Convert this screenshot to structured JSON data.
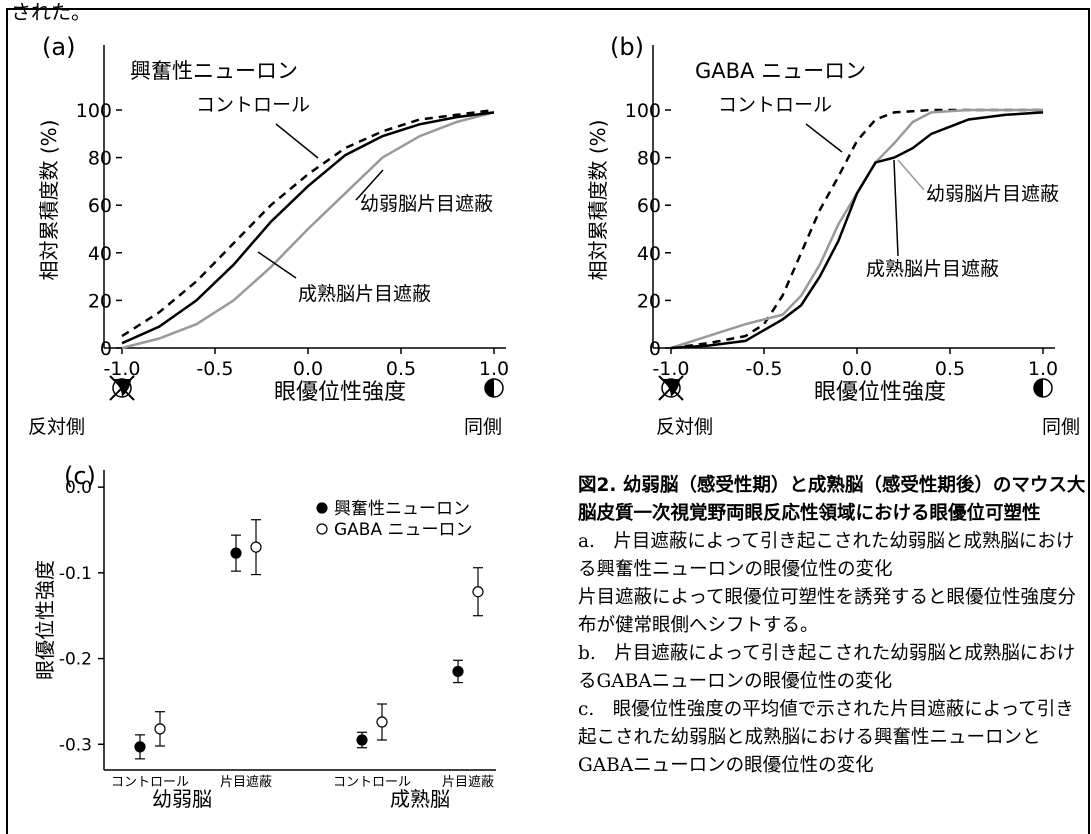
{
  "top_fragment": "された。",
  "panel_a": {
    "label": "(a)",
    "title": "興奮性ニューロン",
    "ylabel": "相対累積度数 (%)",
    "xlabel": "眼優位性強度",
    "yticks": [
      "0",
      "20",
      "40",
      "60",
      "80",
      "100"
    ],
    "xticks": [
      "-1.0",
      "-0.5",
      "0.0",
      "0.5",
      "1.0"
    ],
    "left_side": "反対側",
    "right_side": "同側",
    "label_control": "コントロール",
    "label_juvenile": "幼弱脳片目遮蔽",
    "label_adult": "成熟脳片目遮蔽"
  },
  "panel_b": {
    "label": "(b)",
    "title": "GABA ニューロン",
    "ylabel": "相対累積度数 (%)",
    "xlabel": "眼優位性強度",
    "yticks": [
      "0",
      "20",
      "40",
      "60",
      "80",
      "100"
    ],
    "xticks": [
      "-1.0",
      "-0.5",
      "0.0",
      "0.5",
      "1.0"
    ],
    "left_side": "反対側",
    "right_side": "同側",
    "label_control": "コントロール",
    "label_juvenile": "幼弱脳片目遮蔽",
    "label_adult": "成熟脳片目遮蔽"
  },
  "panel_c": {
    "label": "(c)",
    "ylabel": "眼優位性強度",
    "yticks": [
      "0.0",
      "-0.1",
      "-0.2",
      "-0.3"
    ],
    "legend_exc": "興奮性ニューロン",
    "legend_gaba": "GABA ニューロン",
    "cat_control": "コントロール",
    "cat_md": "片目遮蔽",
    "group_juvenile": "幼弱脳",
    "group_adult": "成熟脳"
  },
  "caption": {
    "title": "図2. 幼弱脳（感受性期）と成熟脳（感受性期後）のマウス大脳皮質一次視覚野両眼反応性領域における眼優位可塑性",
    "p1": "a.　片目遮蔽によって引き起こされた幼弱脳と成熟脳における興奮性ニューロンの眼優位性の変化",
    "p2": "片目遮蔽によって眼優位可塑性を誘発すると眼優位性強度分布が健常眼側へシフトする。",
    "p3": "b.　片目遮蔽によって引き起こされた幼弱脳と成熟脳におけるGABAニューロンの眼優位性の変化",
    "p4": "c.　眼優位性強度の平均値で示された片目遮蔽によって引き起こされた幼弱脳と成熟脳における興奮性ニューロンとGABAニューロンの眼優位性の変化"
  },
  "chart_data": [
    {
      "type": "line",
      "xlim": [
        -1.0,
        1.0
      ],
      "ylim": [
        0,
        100
      ],
      "series": [
        {
          "name": "コントロール",
          "style": "dashed",
          "color": "#000000",
          "x": [
            -1.0,
            -0.8,
            -0.6,
            -0.4,
            -0.2,
            0.0,
            0.2,
            0.4,
            0.6,
            0.8,
            1.0
          ],
          "y": [
            5,
            15,
            28,
            44,
            60,
            73,
            84,
            91,
            96,
            98,
            100
          ]
        },
        {
          "name": "幼弱脳片目遮蔽",
          "style": "solid",
          "color": "#999999",
          "x": [
            -1.0,
            -0.8,
            -0.6,
            -0.4,
            -0.2,
            0.0,
            0.2,
            0.4,
            0.6,
            0.8,
            1.0
          ],
          "y": [
            0,
            4,
            10,
            20,
            34,
            50,
            65,
            80,
            89,
            95,
            99
          ]
        },
        {
          "name": "成熟脳片目遮蔽",
          "style": "solid",
          "color": "#000000",
          "x": [
            -1.0,
            -0.8,
            -0.6,
            -0.4,
            -0.2,
            0.0,
            0.2,
            0.4,
            0.6,
            0.8,
            1.0
          ],
          "y": [
            2,
            9,
            20,
            35,
            53,
            68,
            81,
            89,
            94,
            97,
            99
          ]
        }
      ]
    },
    {
      "type": "line",
      "xlim": [
        -1.0,
        1.0
      ],
      "ylim": [
        0,
        100
      ],
      "series": [
        {
          "name": "コントロール",
          "style": "dashed",
          "color": "#000000",
          "x": [
            -1.0,
            -0.8,
            -0.6,
            -0.5,
            -0.4,
            -0.3,
            -0.2,
            -0.1,
            0.0,
            0.1,
            0.2,
            0.4,
            0.6,
            0.8,
            1.0
          ],
          "y": [
            0,
            2,
            5,
            10,
            22,
            40,
            58,
            72,
            87,
            96,
            99,
            100,
            100,
            100,
            100
          ]
        },
        {
          "name": "幼弱脳片目遮蔽",
          "style": "solid",
          "color": "#999999",
          "x": [
            -1.0,
            -0.8,
            -0.6,
            -0.4,
            -0.3,
            -0.2,
            -0.1,
            0.0,
            0.1,
            0.2,
            0.3,
            0.4,
            0.6,
            0.8,
            1.0
          ],
          "y": [
            0,
            5,
            10,
            14,
            22,
            35,
            52,
            65,
            78,
            86,
            95,
            99,
            100,
            100,
            100
          ]
        },
        {
          "name": "成熟脳片目遮蔽",
          "style": "solid",
          "color": "#000000",
          "x": [
            -1.0,
            -0.8,
            -0.6,
            -0.4,
            -0.3,
            -0.2,
            -0.1,
            0.0,
            0.1,
            0.2,
            0.3,
            0.4,
            0.5,
            0.6,
            0.8,
            1.0
          ],
          "y": [
            0,
            1,
            3,
            12,
            18,
            30,
            45,
            65,
            78,
            80,
            84,
            90,
            93,
            96,
            98,
            99
          ]
        }
      ]
    },
    {
      "type": "scatter",
      "ylim": [
        -0.33,
        0.02
      ],
      "categories": [
        "コントロール",
        "片目遮蔽",
        "コントロール",
        "片目遮蔽"
      ],
      "series": [
        {
          "name": "興奮性ニューロン",
          "marker": "filled",
          "values": [
            -0.303,
            -0.077,
            -0.295,
            -0.215
          ],
          "errors": [
            0.014,
            0.021,
            0.009,
            0.013
          ]
        },
        {
          "name": "GABA ニューロン",
          "marker": "open",
          "values": [
            -0.282,
            -0.07,
            -0.274,
            -0.122
          ],
          "errors": [
            0.02,
            0.032,
            0.021,
            0.028
          ]
        }
      ]
    }
  ]
}
